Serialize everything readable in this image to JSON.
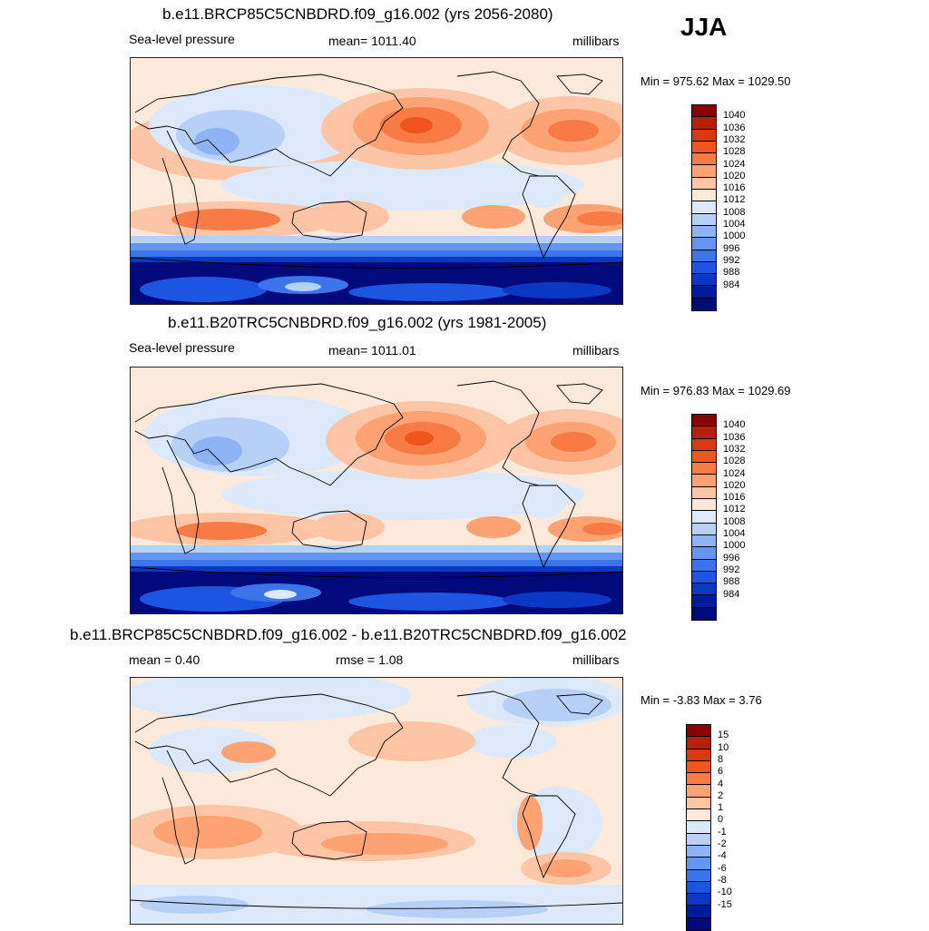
{
  "season": "JJA",
  "panels": [
    {
      "title": "b.e11.BRCP85C5CNBDRD.f09_g16.002 (yrs 2056-2080)",
      "left": "Sea-level pressure",
      "center": "mean= 1011.40",
      "right": "millibars",
      "minmax": "Min = 975.62 Max = 1029.50"
    },
    {
      "title": "b.e11.B20TRC5CNBDRD.f09_g16.002 (yrs 1981-2005)",
      "left": "Sea-level pressure",
      "center": "mean= 1011.01",
      "right": "millibars",
      "minmax": "Min = 976.83 Max = 1029.69"
    },
    {
      "title": "b.e11.BRCP85C5CNBDRD.f09_g16.002 - b.e11.B20TRC5CNBDRD.f09_g16.002",
      "left": "mean =   0.40",
      "center": "rmse =    1.08",
      "right": "millibars",
      "minmax": "Min =  -3.83 Max =   3.76"
    }
  ],
  "colorbar_abs": {
    "colors": [
      "#8b0000",
      "#b4200a",
      "#d9390f",
      "#f0551e",
      "#f87b45",
      "#fca273",
      "#fdc5a5",
      "#fde9da",
      "#dbe9fb",
      "#b7d0f8",
      "#8fb4f5",
      "#6495f0",
      "#3c74eb",
      "#1c55e0",
      "#0a38c4",
      "#001a9c",
      "#000a7a"
    ],
    "labels": [
      "1040",
      "1036",
      "1032",
      "1028",
      "1024",
      "1020",
      "1016",
      "1012",
      "1008",
      "1004",
      "1000",
      "996",
      "992",
      "988",
      "984"
    ]
  },
  "colorbar_diff": {
    "colors": [
      "#8b0000",
      "#b4200a",
      "#d9390f",
      "#f0551e",
      "#f87b45",
      "#fca273",
      "#fdc5a5",
      "#fde9da",
      "#dbe9fb",
      "#b7d0f8",
      "#8fb4f5",
      "#6495f0",
      "#3c74eb",
      "#1c55e0",
      "#0a38c4",
      "#001a9c",
      "#000a7a"
    ],
    "labels": [
      "15",
      "10",
      "8",
      "6",
      "4",
      "2",
      "1",
      "0",
      "-1",
      "-2",
      "-4",
      "-6",
      "-8",
      "-10",
      "-15"
    ]
  },
  "chart_data": [
    {
      "type": "heatmap",
      "title": "b.e11.BRCP85C5CNBDRD.f09_g16.002 (yrs 2056-2080)",
      "field": "Sea-level pressure",
      "units": "millibars",
      "mean": 1011.4,
      "min": 975.62,
      "max": 1029.5,
      "contour_levels": [
        984,
        988,
        992,
        996,
        1000,
        1004,
        1008,
        1012,
        1016,
        1020,
        1024,
        1028,
        1032,
        1036,
        1040
      ]
    },
    {
      "type": "heatmap",
      "title": "b.e11.B20TRC5CNBDRD.f09_g16.002 (yrs 1981-2005)",
      "field": "Sea-level pressure",
      "units": "millibars",
      "mean": 1011.01,
      "min": 976.83,
      "max": 1029.69,
      "contour_levels": [
        984,
        988,
        992,
        996,
        1000,
        1004,
        1008,
        1012,
        1016,
        1020,
        1024,
        1028,
        1032,
        1036,
        1040
      ]
    },
    {
      "type": "heatmap",
      "title": "b.e11.BRCP85C5CNBDRD.f09_g16.002 - b.e11.B20TRC5CNBDRD.f09_g16.002",
      "units": "millibars",
      "mean": 0.4,
      "rmse": 1.08,
      "min": -3.83,
      "max": 3.76,
      "contour_levels": [
        -15,
        -10,
        -8,
        -6,
        -4,
        -2,
        -1,
        0,
        1,
        2,
        4,
        6,
        8,
        10,
        15
      ]
    }
  ]
}
